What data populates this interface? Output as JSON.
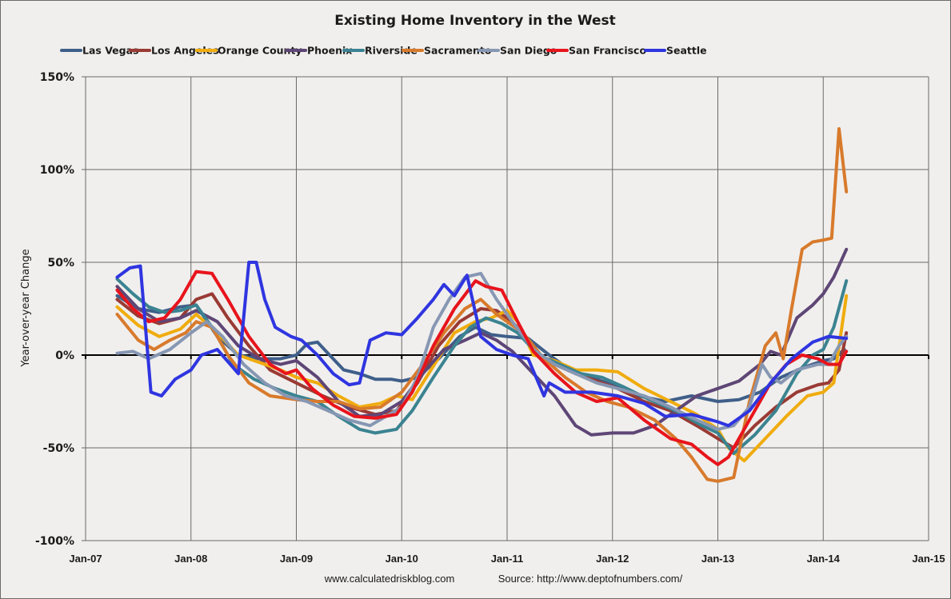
{
  "chart_data": {
    "type": "line",
    "title": "Existing Home Inventory in the West",
    "xlabel": "",
    "ylabel": "Year-over-year Change",
    "ylim": [
      -100,
      150
    ],
    "xlim": [
      2007,
      2015
    ],
    "yticks": [
      150,
      100,
      50,
      0,
      -50,
      -100
    ],
    "ytick_labels": [
      "150%",
      "100%",
      "50%",
      "0%",
      "-50%",
      "-100%"
    ],
    "xticks": [
      2007,
      2008,
      2009,
      2010,
      2011,
      2012,
      2013,
      2014,
      2015
    ],
    "xtick_labels": [
      "Jan-07",
      "Jan-08",
      "Jan-09",
      "Jan-10",
      "Jan-11",
      "Jan-12",
      "Jan-13",
      "Jan-14",
      "Jan-15"
    ],
    "grid": true,
    "legend_position": "top",
    "x_units": "decimal year (monthly data)",
    "y_units": "percent",
    "series": [
      {
        "name": "Las Vegas",
        "color": "#3f5f8a",
        "x": [
          2007.3,
          2007.5,
          2007.7,
          2007.9,
          2008.05,
          2008.25,
          2008.45,
          2008.65,
          2008.85,
          2009.0,
          2009.1,
          2009.2,
          2009.3,
          2009.45,
          2009.6,
          2009.75,
          2009.9,
          2010.0,
          2010.15,
          2010.35,
          2010.55,
          2010.7,
          2010.85,
          2011.0,
          2011.2,
          2011.4,
          2011.6,
          2011.8,
          2012.0,
          2012.25,
          2012.5,
          2012.75,
          2013.0,
          2013.2,
          2013.4,
          2013.6,
          2013.8,
          2014.0,
          2014.1,
          2014.2
        ],
        "values": [
          32,
          25,
          23,
          26,
          27,
          10,
          0,
          -2,
          -2,
          0,
          6,
          7,
          1,
          -8,
          -10,
          -13,
          -13,
          -14,
          -12,
          -2,
          10,
          15,
          11,
          10,
          9,
          0,
          -8,
          -12,
          -16,
          -22,
          -25,
          -22,
          -25,
          -24,
          -20,
          -12,
          -7,
          -3,
          -2,
          3
        ]
      },
      {
        "name": "Los Angeles",
        "color": "#9a3a34",
        "x": [
          2007.3,
          2007.5,
          2007.7,
          2007.9,
          2008.05,
          2008.2,
          2008.35,
          2008.55,
          2008.75,
          2009.0,
          2009.25,
          2009.5,
          2009.75,
          2009.95,
          2010.15,
          2010.35,
          2010.55,
          2010.75,
          2010.9,
          2011.0,
          2011.1,
          2011.25,
          2011.45,
          2011.65,
          2011.85,
          2012.05,
          2012.3,
          2012.55,
          2012.8,
          2013.0,
          2013.15,
          2013.35,
          2013.55,
          2013.75,
          2013.95,
          2014.05,
          2014.15,
          2014.22
        ],
        "values": [
          30,
          21,
          17,
          20,
          30,
          33,
          20,
          5,
          -8,
          -15,
          -22,
          -28,
          -32,
          -30,
          -15,
          5,
          18,
          25,
          24,
          20,
          15,
          2,
          -5,
          -10,
          -14,
          -18,
          -25,
          -30,
          -38,
          -45,
          -50,
          -38,
          -28,
          -20,
          -16,
          -15,
          -8,
          12
        ]
      },
      {
        "name": "Orange County",
        "color": "#f0ac0e",
        "x": [
          2007.3,
          2007.5,
          2007.7,
          2007.9,
          2008.05,
          2008.25,
          2008.45,
          2008.65,
          2008.85,
          2009.0,
          2009.2,
          2009.4,
          2009.6,
          2009.8,
          2009.95,
          2010.1,
          2010.3,
          2010.5,
          2010.7,
          2010.85,
          2011.0,
          2011.1,
          2011.25,
          2011.45,
          2011.65,
          2011.85,
          2012.05,
          2012.3,
          2012.55,
          2012.8,
          2013.0,
          2013.1,
          2013.25,
          2013.45,
          2013.65,
          2013.85,
          2014.0,
          2014.1,
          2014.22
        ],
        "values": [
          26,
          16,
          10,
          14,
          22,
          12,
          0,
          -4,
          -8,
          -12,
          -15,
          -22,
          -28,
          -26,
          -22,
          -24,
          -6,
          12,
          18,
          20,
          24,
          18,
          0,
          -3,
          -8,
          -8,
          -9,
          -18,
          -25,
          -32,
          -40,
          -50,
          -57,
          -45,
          -33,
          -22,
          -20,
          -15,
          32
        ]
      },
      {
        "name": "Phoenix",
        "color": "#5e4676",
        "x": [
          2007.3,
          2007.5,
          2007.7,
          2007.9,
          2008.05,
          2008.25,
          2008.45,
          2008.65,
          2008.85,
          2009.0,
          2009.2,
          2009.4,
          2009.6,
          2009.8,
          2010.0,
          2010.2,
          2010.4,
          2010.6,
          2010.75,
          2010.9,
          2011.05,
          2011.25,
          2011.45,
          2011.65,
          2011.8,
          2012.0,
          2012.2,
          2012.4,
          2012.6,
          2012.8,
          2013.0,
          2013.2,
          2013.4,
          2013.5,
          2013.6,
          2013.75,
          2013.9,
          2014.0,
          2014.1,
          2014.22
        ],
        "values": [
          37,
          25,
          18,
          20,
          24,
          18,
          5,
          -2,
          -5,
          -3,
          -12,
          -25,
          -33,
          -32,
          -25,
          -10,
          3,
          8,
          12,
          8,
          2,
          -10,
          -22,
          -38,
          -43,
          -42,
          -42,
          -38,
          -30,
          -22,
          -18,
          -14,
          -5,
          2,
          0,
          20,
          27,
          33,
          42,
          57
        ]
      },
      {
        "name": "Riverside",
        "color": "#3b8391",
        "x": [
          2007.3,
          2007.45,
          2007.6,
          2007.75,
          2007.9,
          2008.05,
          2008.2,
          2008.4,
          2008.6,
          2008.8,
          2009.0,
          2009.2,
          2009.4,
          2009.6,
          2009.75,
          2009.95,
          2010.1,
          2010.3,
          2010.5,
          2010.65,
          2010.8,
          2010.95,
          2011.1,
          2011.3,
          2011.5,
          2011.7,
          2011.9,
          2012.1,
          2012.35,
          2012.6,
          2012.85,
          2013.0,
          2013.15,
          2013.35,
          2013.55,
          2013.75,
          2013.9,
          2014.0,
          2014.1,
          2014.22
        ],
        "values": [
          41,
          33,
          26,
          23,
          24,
          27,
          15,
          -5,
          -13,
          -18,
          -22,
          -25,
          -33,
          -40,
          -42,
          -40,
          -30,
          -12,
          5,
          15,
          20,
          17,
          12,
          0,
          -5,
          -10,
          -12,
          -17,
          -24,
          -30,
          -38,
          -42,
          -53,
          -43,
          -30,
          -10,
          0,
          3,
          15,
          40
        ]
      },
      {
        "name": "Sacramento",
        "color": "#d87a2c",
        "x": [
          2007.3,
          2007.5,
          2007.65,
          2007.8,
          2007.95,
          2008.05,
          2008.2,
          2008.35,
          2008.55,
          2008.75,
          2009.0,
          2009.2,
          2009.4,
          2009.6,
          2009.8,
          2010.0,
          2010.2,
          2010.4,
          2010.6,
          2010.75,
          2010.9,
          2011.0,
          2011.15,
          2011.35,
          2011.55,
          2011.75,
          2011.95,
          2012.15,
          2012.4,
          2012.6,
          2012.75,
          2012.9,
          2013.0,
          2013.15,
          2013.3,
          2013.45,
          2013.55,
          2013.62,
          2013.7,
          2013.8,
          2013.9,
          2014.0,
          2014.08,
          2014.15,
          2014.22
        ],
        "values": [
          22,
          8,
          3,
          8,
          12,
          18,
          15,
          0,
          -15,
          -22,
          -24,
          -25,
          -25,
          -29,
          -28,
          -20,
          -5,
          12,
          25,
          30,
          22,
          18,
          12,
          -2,
          -12,
          -20,
          -25,
          -28,
          -35,
          -45,
          -55,
          -67,
          -68,
          -66,
          -25,
          5,
          12,
          -2,
          25,
          57,
          61,
          62,
          63,
          122,
          88
        ]
      },
      {
        "name": "San Diego",
        "color": "#8797b3",
        "x": [
          2007.3,
          2007.45,
          2007.6,
          2007.8,
          2008.0,
          2008.15,
          2008.3,
          2008.5,
          2008.7,
          2008.9,
          2009.1,
          2009.3,
          2009.5,
          2009.7,
          2009.85,
          2010.0,
          2010.15,
          2010.3,
          2010.45,
          2010.6,
          2010.75,
          2010.9,
          2011.05,
          2011.25,
          2011.45,
          2011.65,
          2011.85,
          2012.05,
          2012.3,
          2012.55,
          2012.8,
          2013.0,
          2013.15,
          2013.3,
          2013.42,
          2013.5,
          2013.6,
          2013.75,
          2013.95,
          2014.05,
          2014.15,
          2014.22
        ],
        "values": [
          1,
          2,
          -2,
          3,
          12,
          18,
          10,
          -5,
          -15,
          -22,
          -25,
          -30,
          -35,
          -38,
          -33,
          -28,
          -12,
          15,
          30,
          42,
          44,
          30,
          18,
          3,
          -5,
          -10,
          -15,
          -18,
          -22,
          -28,
          -35,
          -40,
          -38,
          -28,
          -5,
          -12,
          -15,
          -8,
          -5,
          -5,
          5,
          10
        ]
      },
      {
        "name": "San Francisco",
        "color": "#e8141c",
        "x": [
          2007.3,
          2007.45,
          2007.6,
          2007.75,
          2007.9,
          2008.05,
          2008.2,
          2008.35,
          2008.55,
          2008.75,
          2008.9,
          2009.0,
          2009.15,
          2009.35,
          2009.55,
          2009.75,
          2009.95,
          2010.1,
          2010.3,
          2010.5,
          2010.7,
          2010.8,
          2010.95,
          2011.1,
          2011.25,
          2011.45,
          2011.65,
          2011.85,
          2012.05,
          2012.3,
          2012.55,
          2012.75,
          2012.9,
          2013.0,
          2013.1,
          2013.3,
          2013.5,
          2013.65,
          2013.8,
          2013.95,
          2014.05,
          2014.15,
          2014.22
        ],
        "values": [
          35,
          25,
          18,
          20,
          30,
          45,
          44,
          30,
          10,
          -5,
          -10,
          -8,
          -18,
          -27,
          -33,
          -34,
          -32,
          -20,
          5,
          25,
          40,
          37,
          35,
          18,
          2,
          -10,
          -20,
          -25,
          -23,
          -35,
          -45,
          -48,
          -55,
          -59,
          -55,
          -35,
          -15,
          -5,
          0,
          -2,
          -5,
          -5,
          2
        ]
      },
      {
        "name": "Seattle",
        "color": "#2f35e0",
        "x": [
          2007.3,
          2007.42,
          2007.52,
          2007.62,
          2007.72,
          2007.85,
          2008.0,
          2008.1,
          2008.25,
          2008.45,
          2008.55,
          2008.62,
          2008.7,
          2008.8,
          2008.95,
          2009.05,
          2009.2,
          2009.35,
          2009.5,
          2009.6,
          2009.7,
          2009.85,
          2010.0,
          2010.15,
          2010.3,
          2010.4,
          2010.5,
          2010.62,
          2010.75,
          2010.9,
          2011.05,
          2011.2,
          2011.35,
          2011.4,
          2011.55,
          2011.8,
          2012.05,
          2012.3,
          2012.5,
          2012.75,
          2013.0,
          2013.1,
          2013.3,
          2013.5,
          2013.7,
          2013.9,
          2014.05,
          2014.22
        ],
        "values": [
          42,
          47,
          48,
          -20,
          -22,
          -13,
          -8,
          0,
          3,
          -10,
          50,
          50,
          30,
          15,
          10,
          8,
          0,
          -10,
          -16,
          -15,
          8,
          12,
          11,
          20,
          30,
          38,
          32,
          43,
          10,
          3,
          0,
          -2,
          -22,
          -15,
          -20,
          -20,
          -22,
          -26,
          -33,
          -32,
          -36,
          -38,
          -30,
          -15,
          -2,
          7,
          10,
          9
        ]
      }
    ]
  },
  "footer": {
    "site": "www.calculatedriskblog.com",
    "source": "Source: http://www.deptofnumbers.com/"
  }
}
